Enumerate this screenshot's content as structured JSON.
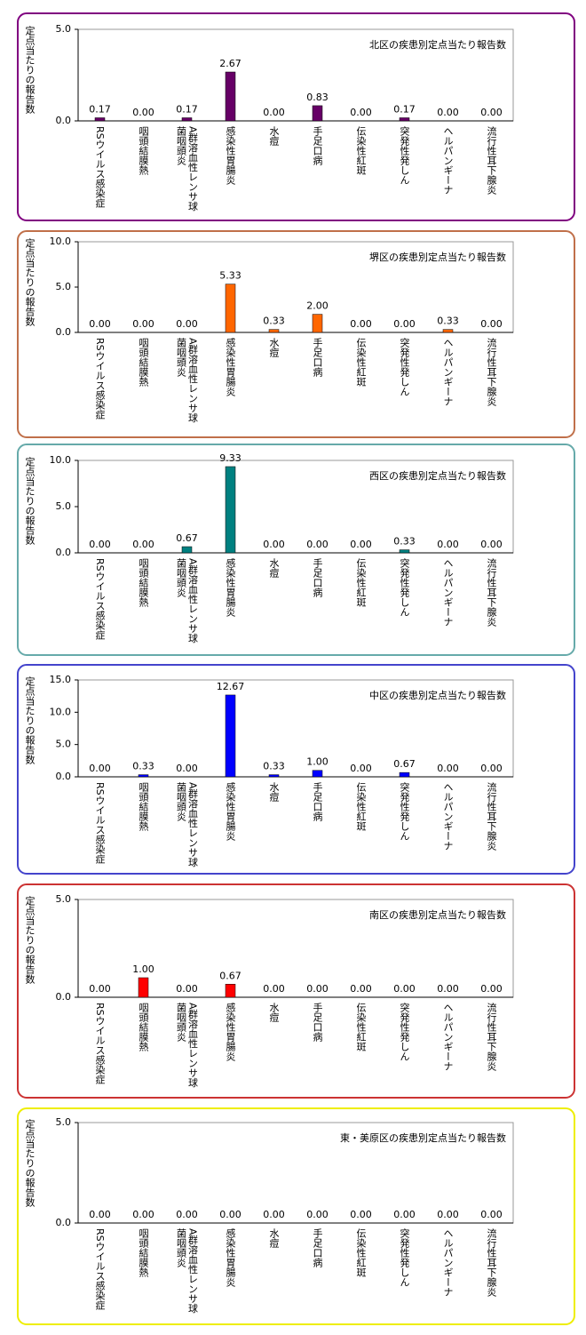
{
  "chart_data": [
    {
      "type": "bar",
      "title": "北区の疾患別定点当たり報告数",
      "ylabel": "定点当たりの報告数",
      "frame_color": "#800080",
      "categories": [
        "RSウイルス感染症",
        "咽頭結膜熱",
        "A群溶血性レンサ球菌咽頭炎",
        "感染性胃腸炎",
        "水痘",
        "手足口病",
        "伝染性紅斑",
        "突発性発しん",
        "ヘルパンギーナ",
        "流行性耳下腺炎"
      ],
      "values": [
        0.17,
        0,
        0.17,
        2.67,
        0,
        0.83,
        0,
        0.17,
        0,
        0
      ],
      "value_labels": [
        "0.17",
        "0.00",
        "0.17",
        "2.67",
        "0.00",
        "0.83",
        "0.00",
        "0.17",
        "0.00",
        "0.00"
      ],
      "color": "#660066",
      "ylim": [
        0,
        5
      ],
      "yticks": [
        {
          "value": 0,
          "label": "0.0"
        },
        {
          "value": 5,
          "label": "5.0"
        }
      ]
    },
    {
      "type": "bar",
      "title": "堺区の疾患別定点当たり報告数",
      "ylabel": "定点当たりの報告数",
      "frame_color": "#c0704a",
      "categories": [
        "RSウイルス感染症",
        "咽頭結膜熱",
        "A群溶血性レンサ球菌咽頭炎",
        "感染性胃腸炎",
        "水痘",
        "手足口病",
        "伝染性紅斑",
        "突発性発しん",
        "ヘルパンギーナ",
        "流行性耳下腺炎"
      ],
      "values": [
        0,
        0,
        0,
        5.33,
        0.33,
        2,
        0,
        0,
        0.33,
        0
      ],
      "value_labels": [
        "0.00",
        "0.00",
        "0.00",
        "5.33",
        "0.33",
        "2.00",
        "0.00",
        "0.00",
        "0.33",
        "0.00"
      ],
      "color": "#ff6600",
      "ylim": [
        0,
        10
      ],
      "yticks": [
        {
          "value": 0,
          "label": "0.0"
        },
        {
          "value": 5,
          "label": "5.0"
        },
        {
          "value": 10,
          "label": "10.0"
        }
      ]
    },
    {
      "type": "bar",
      "title": "西区の疾患別定点当たり報告数",
      "ylabel": "定点当たりの報告数",
      "frame_color": "#66aaaa",
      "categories": [
        "RSウイルス感染症",
        "咽頭結膜熱",
        "A群溶血性レンサ球菌咽頭炎",
        "感染性胃腸炎",
        "水痘",
        "手足口病",
        "伝染性紅斑",
        "突発性発しん",
        "ヘルパンギーナ",
        "流行性耳下腺炎"
      ],
      "values": [
        0,
        0,
        0.67,
        9.33,
        0,
        0,
        0,
        0.33,
        0,
        0
      ],
      "value_labels": [
        "0.00",
        "0.00",
        "0.67",
        "9.33",
        "0.00",
        "0.00",
        "0.00",
        "0.33",
        "0.00",
        "0.00"
      ],
      "color": "#008080",
      "ylim": [
        0,
        10
      ],
      "yticks": [
        {
          "value": 0,
          "label": "0.0"
        },
        {
          "value": 5,
          "label": "5.0"
        },
        {
          "value": 10,
          "label": "10.0"
        }
      ]
    },
    {
      "type": "bar",
      "title": "中区の疾患別定点当たり報告数",
      "ylabel": "定点当たりの報告数",
      "frame_color": "#4444cc",
      "categories": [
        "RSウイルス感染症",
        "咽頭結膜熱",
        "A群溶血性レンサ球菌咽頭炎",
        "感染性胃腸炎",
        "水痘",
        "手足口病",
        "伝染性紅斑",
        "突発性発しん",
        "ヘルパンギーナ",
        "流行性耳下腺炎"
      ],
      "values": [
        0,
        0.33,
        0,
        12.67,
        0.33,
        1,
        0,
        0.67,
        0,
        0
      ],
      "value_labels": [
        "0.00",
        "0.33",
        "0.00",
        "12.67",
        "0.33",
        "1.00",
        "0.00",
        "0.67",
        "0.00",
        "0.00"
      ],
      "color": "#0000ff",
      "ylim": [
        0,
        15
      ],
      "yticks": [
        {
          "value": 0,
          "label": "0.0"
        },
        {
          "value": 5,
          "label": "5.0"
        },
        {
          "value": 10,
          "label": "10.0"
        },
        {
          "value": 15,
          "label": "15.0"
        }
      ]
    },
    {
      "type": "bar",
      "title": "南区の疾患別定点当たり報告数",
      "ylabel": "定点当たりの報告数",
      "frame_color": "#cc3333",
      "categories": [
        "RSウイルス感染症",
        "咽頭結膜熱",
        "A群溶血性レンサ球菌咽頭炎",
        "感染性胃腸炎",
        "水痘",
        "手足口病",
        "伝染性紅斑",
        "突発性発しん",
        "ヘルパンギーナ",
        "流行性耳下腺炎"
      ],
      "values": [
        0,
        1,
        0,
        0.67,
        0,
        0,
        0,
        0,
        0,
        0
      ],
      "value_labels": [
        "0.00",
        "1.00",
        "0.00",
        "0.67",
        "0.00",
        "0.00",
        "0.00",
        "0.00",
        "0.00",
        "0.00"
      ],
      "color": "#ff0000",
      "ylim": [
        0,
        5
      ],
      "yticks": [
        {
          "value": 0,
          "label": "0.0"
        },
        {
          "value": 5,
          "label": "5.0"
        }
      ]
    },
    {
      "type": "bar",
      "title": "東・美原区の疾患別定点当たり報告数",
      "ylabel": "定点当たりの報告数",
      "frame_color": "#eeee00",
      "categories": [
        "RSウイルス感染症",
        "咽頭結膜熱",
        "A群溶血性レンサ球菌咽頭炎",
        "感染性胃腸炎",
        "水痘",
        "手足口病",
        "伝染性紅斑",
        "突発性発しん",
        "ヘルパンギーナ",
        "流行性耳下腺炎"
      ],
      "values": [
        0,
        0,
        0,
        0,
        0,
        0,
        0,
        0,
        0,
        0
      ],
      "value_labels": [
        "0.00",
        "0.00",
        "0.00",
        "0.00",
        "0.00",
        "0.00",
        "0.00",
        "0.00",
        "0.00",
        "0.00"
      ],
      "color": "#eeee00",
      "ylim": [
        0,
        5
      ],
      "yticks": [
        {
          "value": 0,
          "label": "0.0"
        },
        {
          "value": 5,
          "label": "5.0"
        }
      ]
    }
  ]
}
